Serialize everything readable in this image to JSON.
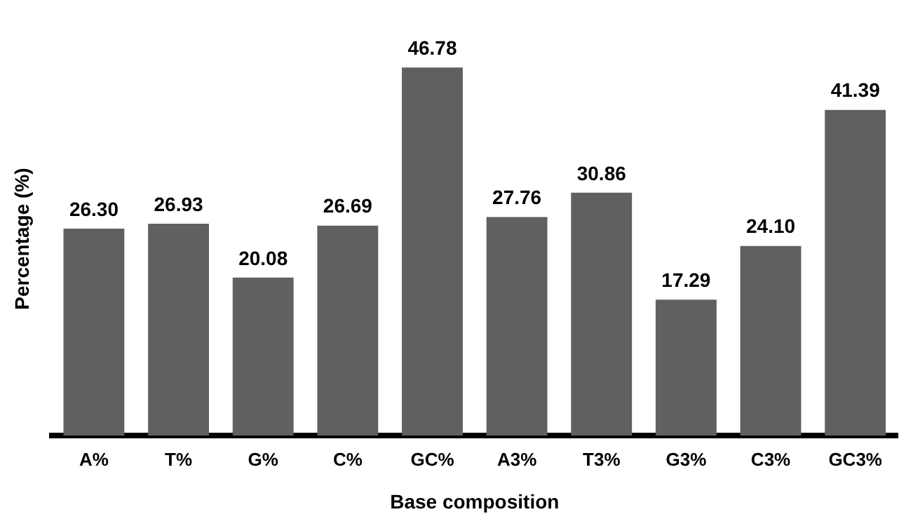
{
  "chart_data": {
    "type": "bar",
    "xlabel": "Base composition",
    "ylabel": "Percentage (%)",
    "categories": [
      "A%",
      "T%",
      "G%",
      "C%",
      "GC%",
      "A3%",
      "T3%",
      "G3%",
      "C3%",
      "GC3%"
    ],
    "values": [
      26.3,
      26.93,
      20.08,
      26.69,
      46.78,
      27.76,
      30.86,
      17.29,
      24.1,
      41.39
    ],
    "value_labels": [
      "26.30",
      "26.93",
      "20.08",
      "26.69",
      "46.78",
      "27.76",
      "30.86",
      "17.29",
      "24.10",
      "41.39"
    ],
    "color": "#606060",
    "grid": false,
    "legend": false
  }
}
